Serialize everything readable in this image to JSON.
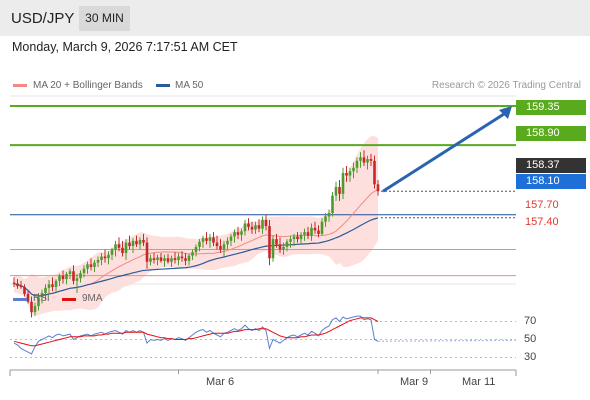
{
  "header": {
    "symbol": "USD/JPY",
    "timeframe": "30 MIN"
  },
  "datetime": "Monday, March 9, 2026 7:17:51 AM CET",
  "source": "Research © 2026 Trading Central",
  "legend_main": [
    {
      "label": "MA 20 + Bollinger Bands",
      "color": "#f08a82"
    },
    {
      "label": "MA 50",
      "color": "#2a5a9a"
    }
  ],
  "legend_rsi": [
    {
      "label": "RSI",
      "color": "#5b7fd0"
    },
    {
      "label": "9MA",
      "color": "#e01010"
    }
  ],
  "price_labels": [
    {
      "text": "159.35",
      "bg": "#5aaa1e",
      "kind": "box"
    },
    {
      "text": "158.90",
      "bg": "#5aaa1e",
      "kind": "box"
    },
    {
      "text": "158.37",
      "bg": "#333333",
      "kind": "box"
    },
    {
      "text": "158.10",
      "bg": "#1f6fd8",
      "kind": "box"
    },
    {
      "text": "157.70",
      "kind": "text"
    },
    {
      "text": "157.40",
      "kind": "text"
    }
  ],
  "rsi_labels": [
    "70",
    "50",
    "30"
  ],
  "x_labels": [
    "Mar 6",
    "Mar 9",
    "Mar 11"
  ],
  "colors": {
    "up": "#4f9a2e",
    "down": "#c62828",
    "resistance": "#5aaa1e",
    "support": "#f08a82",
    "pivot": "#1f4e9a",
    "band_fill": "#fde0de",
    "arrow": "#2a63b0"
  },
  "chart_data": {
    "type": "candlestick",
    "ylim": [
      156.54,
      159.7
    ],
    "levels": [
      {
        "value": 159.35,
        "role": "resistance"
      },
      {
        "value": 158.9,
        "role": "resistance"
      },
      {
        "value": 158.37,
        "role": "last price"
      },
      {
        "value": 158.1,
        "role": "pivot"
      },
      {
        "value": 157.7,
        "role": "support"
      },
      {
        "value": 157.4,
        "role": "support"
      }
    ],
    "x_ticks": [
      {
        "label": "Mar 6",
        "index": 47
      },
      {
        "label": "Mar 9",
        "index": 104
      },
      {
        "label": "Mar 11",
        "index": 119
      }
    ],
    "forecast_target": 159.35,
    "candles_ohlc": [
      [
        157.32,
        157.38,
        157.27,
        157.31
      ],
      [
        157.31,
        157.36,
        157.25,
        157.28
      ],
      [
        157.28,
        157.34,
        157.25,
        157.27
      ],
      [
        157.27,
        157.3,
        157.16,
        157.19
      ],
      [
        157.19,
        157.22,
        157.08,
        157.1
      ],
      [
        157.1,
        157.16,
        156.92,
        156.98
      ],
      [
        156.98,
        157.09,
        156.94,
        157.05
      ],
      [
        157.05,
        157.2,
        157.0,
        157.15
      ],
      [
        157.15,
        157.24,
        157.08,
        157.2
      ],
      [
        157.2,
        157.3,
        157.12,
        157.26
      ],
      [
        157.26,
        157.35,
        157.19,
        157.3
      ],
      [
        157.3,
        157.38,
        157.22,
        157.27
      ],
      [
        157.27,
        157.36,
        157.22,
        157.34
      ],
      [
        157.34,
        157.42,
        157.28,
        157.4
      ],
      [
        157.4,
        157.46,
        157.31,
        157.36
      ],
      [
        157.36,
        157.44,
        157.3,
        157.42
      ],
      [
        157.42,
        157.48,
        157.36,
        157.45
      ],
      [
        157.45,
        157.52,
        157.3,
        157.34
      ],
      [
        157.34,
        157.42,
        157.2,
        157.37
      ],
      [
        157.37,
        157.46,
        157.32,
        157.43
      ],
      [
        157.43,
        157.52,
        157.38,
        157.48
      ],
      [
        157.48,
        157.56,
        157.42,
        157.53
      ],
      [
        157.53,
        157.6,
        157.46,
        157.5
      ],
      [
        157.5,
        157.58,
        157.44,
        157.55
      ],
      [
        157.55,
        157.62,
        157.5,
        157.58
      ],
      [
        157.58,
        157.66,
        157.52,
        157.62
      ],
      [
        157.62,
        157.7,
        157.55,
        157.6
      ],
      [
        157.6,
        157.68,
        157.53,
        157.64
      ],
      [
        157.64,
        157.72,
        157.58,
        157.7
      ],
      [
        157.7,
        157.8,
        157.62,
        157.76
      ],
      [
        157.76,
        157.84,
        157.68,
        157.72
      ],
      [
        157.72,
        157.8,
        157.62,
        157.66
      ],
      [
        157.66,
        157.82,
        157.58,
        157.78
      ],
      [
        157.78,
        157.86,
        157.7,
        157.74
      ],
      [
        157.74,
        157.83,
        157.66,
        157.8
      ],
      [
        157.8,
        157.86,
        157.73,
        157.76
      ],
      [
        157.76,
        157.84,
        157.7,
        157.81
      ],
      [
        157.81,
        157.88,
        157.74,
        157.78
      ],
      [
        157.78,
        157.84,
        157.48,
        157.56
      ],
      [
        157.56,
        157.64,
        157.52,
        157.6
      ],
      [
        157.6,
        157.66,
        157.54,
        157.58
      ],
      [
        157.58,
        157.64,
        157.52,
        157.61
      ],
      [
        157.61,
        157.66,
        157.55,
        157.57
      ],
      [
        157.57,
        157.64,
        157.5,
        157.6
      ],
      [
        157.6,
        157.65,
        157.54,
        157.56
      ],
      [
        157.56,
        157.63,
        157.5,
        157.6
      ],
      [
        157.6,
        157.67,
        157.54,
        157.58
      ],
      [
        157.58,
        157.66,
        157.52,
        157.62
      ],
      [
        157.62,
        157.68,
        157.56,
        157.6
      ],
      [
        157.6,
        157.66,
        157.52,
        157.57
      ],
      [
        157.57,
        157.65,
        157.52,
        157.63
      ],
      [
        157.63,
        157.7,
        157.58,
        157.67
      ],
      [
        157.67,
        157.76,
        157.62,
        157.73
      ],
      [
        157.73,
        157.82,
        157.68,
        157.79
      ],
      [
        157.79,
        157.86,
        157.72,
        157.83
      ],
      [
        157.83,
        157.9,
        157.76,
        157.8
      ],
      [
        157.8,
        157.88,
        157.72,
        157.84
      ],
      [
        157.84,
        157.9,
        157.74,
        157.78
      ],
      [
        157.78,
        157.86,
        157.7,
        157.74
      ],
      [
        157.74,
        157.82,
        157.66,
        157.7
      ],
      [
        157.7,
        157.8,
        157.62,
        157.76
      ],
      [
        157.76,
        157.84,
        157.7,
        157.8
      ],
      [
        157.8,
        157.88,
        157.74,
        157.85
      ],
      [
        157.85,
        157.93,
        157.78,
        157.9
      ],
      [
        157.9,
        157.96,
        157.82,
        157.87
      ],
      [
        157.87,
        157.94,
        157.8,
        157.91
      ],
      [
        157.91,
        158.04,
        157.86,
        158.0
      ],
      [
        158.0,
        158.06,
        157.92,
        157.96
      ],
      [
        157.96,
        158.02,
        157.88,
        157.93
      ],
      [
        157.93,
        158.02,
        157.88,
        157.98
      ],
      [
        157.98,
        158.05,
        157.9,
        157.94
      ],
      [
        157.94,
        158.08,
        157.88,
        158.04
      ],
      [
        158.04,
        158.1,
        157.92,
        157.97
      ],
      [
        157.97,
        158.04,
        157.52,
        157.6
      ],
      [
        157.6,
        157.86,
        157.56,
        157.82
      ],
      [
        157.82,
        157.88,
        157.72,
        157.76
      ],
      [
        157.76,
        157.84,
        157.66,
        157.7
      ],
      [
        157.7,
        157.78,
        157.64,
        157.73
      ],
      [
        157.73,
        157.82,
        157.68,
        157.79
      ],
      [
        157.79,
        157.86,
        157.72,
        157.82
      ],
      [
        157.82,
        157.88,
        157.74,
        157.85
      ],
      [
        157.85,
        157.9,
        157.78,
        157.82
      ],
      [
        157.82,
        157.9,
        157.76,
        157.87
      ],
      [
        157.87,
        157.94,
        157.8,
        157.9
      ],
      [
        157.9,
        157.96,
        157.82,
        157.86
      ],
      [
        157.86,
        158.0,
        157.8,
        157.95
      ],
      [
        157.95,
        158.02,
        157.88,
        157.92
      ],
      [
        157.92,
        157.98,
        157.84,
        157.88
      ],
      [
        157.88,
        158.06,
        157.86,
        158.02
      ],
      [
        158.02,
        158.12,
        157.96,
        158.08
      ],
      [
        158.08,
        158.16,
        158.02,
        158.12
      ],
      [
        158.12,
        158.36,
        158.08,
        158.32
      ],
      [
        158.32,
        158.48,
        158.26,
        158.42
      ],
      [
        158.42,
        158.5,
        158.26,
        158.34
      ],
      [
        158.34,
        158.64,
        158.28,
        158.58
      ],
      [
        158.58,
        158.66,
        158.48,
        158.55
      ],
      [
        158.55,
        158.64,
        158.48,
        158.6
      ],
      [
        158.6,
        158.7,
        158.52,
        158.64
      ],
      [
        158.64,
        158.76,
        158.58,
        158.72
      ],
      [
        158.72,
        158.82,
        158.64,
        158.76
      ],
      [
        158.76,
        158.84,
        158.66,
        158.7
      ],
      [
        158.7,
        158.78,
        158.62,
        158.74
      ],
      [
        158.74,
        158.8,
        158.66,
        158.72
      ],
      [
        158.72,
        158.78,
        158.4,
        158.45
      ],
      [
        158.45,
        158.5,
        158.32,
        158.37
      ]
    ],
    "rsi": [
      46,
      44,
      40,
      38,
      36,
      34,
      42,
      48,
      50,
      52,
      54,
      52,
      55,
      56,
      54,
      55,
      56,
      50,
      52,
      54,
      55,
      56,
      54,
      56,
      57,
      58,
      56,
      58,
      59,
      60,
      58,
      56,
      60,
      58,
      60,
      58,
      60,
      58,
      46,
      50,
      49,
      50,
      49,
      51,
      49,
      51,
      50,
      52,
      51,
      49,
      52,
      55,
      58,
      60,
      61,
      58,
      60,
      57,
      55,
      53,
      57,
      58,
      60,
      62,
      60,
      62,
      66,
      62,
      60,
      62,
      60,
      64,
      60,
      40,
      50,
      48,
      46,
      49,
      52,
      54,
      55,
      53,
      55,
      57,
      55,
      59,
      57,
      54,
      60,
      63,
      65,
      72,
      74,
      70,
      75,
      73,
      74,
      75,
      76,
      76,
      72,
      73,
      72,
      50,
      48
    ],
    "rsi_ma": [
      48,
      47,
      46,
      45,
      44,
      43,
      43,
      44,
      45,
      46,
      47,
      48,
      49,
      50,
      51,
      52,
      53,
      53,
      53,
      53,
      54,
      54,
      54,
      54,
      55,
      55,
      56,
      56,
      57,
      57,
      57,
      57,
      58,
      58,
      58,
      58,
      58,
      58,
      56,
      55,
      54,
      53,
      52,
      52,
      51,
      51,
      50,
      50,
      50,
      50,
      51,
      51,
      52,
      53,
      54,
      55,
      56,
      57,
      57,
      57,
      57,
      57,
      58,
      59,
      59,
      60,
      61,
      61,
      61,
      61,
      62,
      62,
      62,
      60,
      58,
      56,
      54,
      53,
      52,
      52,
      52,
      52,
      53,
      53,
      54,
      55,
      55,
      55,
      56,
      57,
      59,
      61,
      63,
      65,
      67,
      69,
      71,
      72,
      73,
      74,
      74,
      74,
      74,
      72,
      70
    ]
  }
}
